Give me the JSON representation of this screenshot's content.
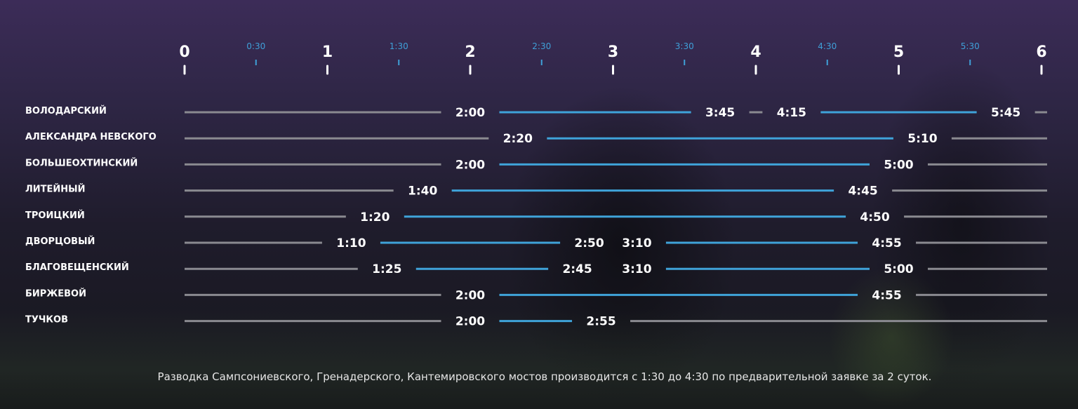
{
  "chart_data": {
    "type": "timeline",
    "x_range": [
      0,
      6
    ],
    "major_ticks": [
      "0",
      "1",
      "2",
      "3",
      "4",
      "5",
      "6"
    ],
    "minor_ticks": [
      "0:30",
      "1:30",
      "2:30",
      "3:30",
      "4:30",
      "5:30"
    ],
    "colors": {
      "open": "#3fa3d9",
      "closed": "#8a8a90",
      "text": "#ffffff",
      "minor_tick": "#3fa0d8"
    },
    "rows": [
      {
        "name": "ВОЛОДАРСКИЙ",
        "intervals": [
          [
            "2:00",
            "3:45"
          ],
          [
            "4:15",
            "5:45"
          ]
        ]
      },
      {
        "name": "АЛЕКСАНДРА НЕВСКОГО",
        "intervals": [
          [
            "2:20",
            "5:10"
          ]
        ]
      },
      {
        "name": "БОЛЬШЕОХТИНСКИЙ",
        "intervals": [
          [
            "2:00",
            "5:00"
          ]
        ]
      },
      {
        "name": "ЛИТЕЙНЫЙ",
        "intervals": [
          [
            "1:40",
            "4:45"
          ]
        ]
      },
      {
        "name": "ТРОИЦКИЙ",
        "intervals": [
          [
            "1:20",
            "4:50"
          ]
        ]
      },
      {
        "name": "ДВОРЦОВЫЙ",
        "intervals": [
          [
            "1:10",
            "2:50"
          ],
          [
            "3:10",
            "4:55"
          ]
        ]
      },
      {
        "name": "БЛАГОВЕЩЕНСКИЙ",
        "intervals": [
          [
            "1:25",
            "2:45"
          ],
          [
            "3:10",
            "5:00"
          ]
        ]
      },
      {
        "name": "БИРЖЕВОЙ",
        "intervals": [
          [
            "2:00",
            "4:55"
          ]
        ]
      },
      {
        "name": "ТУЧКОВ",
        "intervals": [
          [
            "2:00",
            "2:55"
          ]
        ]
      }
    ]
  },
  "footnote": "Разводка Сампсониевского, Гренадерского, Кантемировского мостов производится с 1:30 до 4:30 по предварительной заявке за 2 суток."
}
